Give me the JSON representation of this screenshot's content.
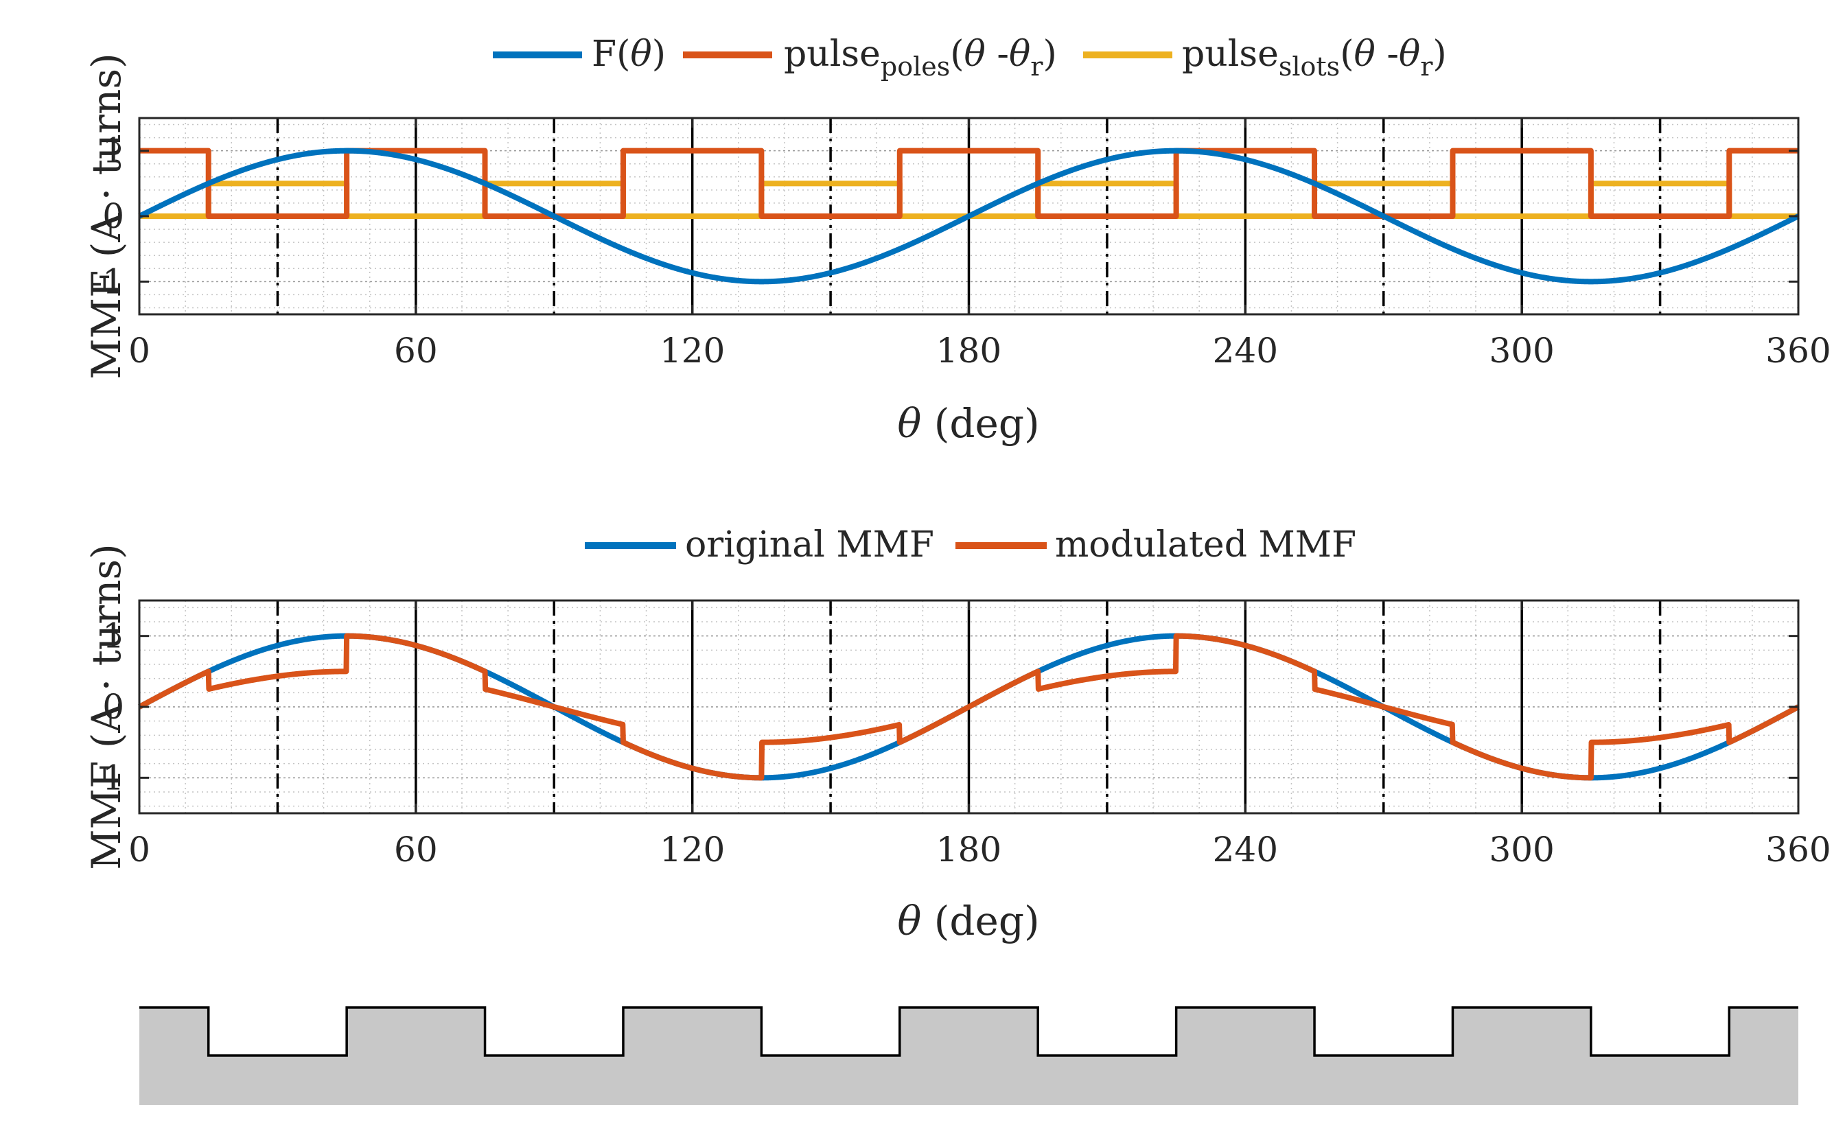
{
  "chart_data": [
    {
      "type": "line",
      "legend": {
        "placement": "top-outside",
        "entries": [
          {
            "main": "F(",
            "theta": "θ",
            "close": ")"
          },
          {
            "main": "pulse",
            "sub": "poles",
            "open": "(",
            "theta": "θ",
            "mid": " -",
            "theta2": "θ",
            "rsub": "r",
            "close": ")"
          },
          {
            "main": "pulse",
            "sub": "slots",
            "open": "(",
            "theta": "θ",
            "mid": " -",
            "theta2": "θ",
            "rsub": "r",
            "close": ")"
          }
        ]
      },
      "xlabel": {
        "symbol": "θ",
        "rest": " (deg)"
      },
      "ylabel": "MMF (A · turns)",
      "xlim": [
        0,
        360
      ],
      "ylim": [
        -1.5,
        1.5
      ],
      "xticks": [
        "0",
        "60",
        "120",
        "180",
        "240",
        "300",
        "360"
      ],
      "yticks": [
        "1",
        "0",
        "-1"
      ],
      "grid": "minor-dotted",
      "colors": {
        "series1": "#0072BD",
        "series2": "#D95319",
        "series3": "#EDB120"
      },
      "series": [
        {
          "name": "F(θ)",
          "function": "sin(2θ)",
          "x_range": [
            0,
            360
          ],
          "amplitude": 1
        },
        {
          "name": "pulse_poles(θ - θr)",
          "high": 1,
          "low": 0,
          "high_intervals": [
            [
              0,
              15
            ],
            [
              45,
              75
            ],
            [
              105,
              135
            ],
            [
              165,
              195
            ],
            [
              225,
              255
            ],
            [
              285,
              315
            ],
            [
              345,
              360
            ]
          ]
        },
        {
          "name": "pulse_slots(θ - θr)",
          "high": 0.5,
          "low": 0,
          "high_intervals": [
            [
              15,
              45
            ],
            [
              75,
              105
            ],
            [
              135,
              165
            ],
            [
              195,
              225
            ],
            [
              255,
              285
            ],
            [
              315,
              345
            ]
          ]
        }
      ],
      "vertical_lines": {
        "solid": [
          60,
          120,
          180,
          240,
          300
        ],
        "dashdot": [
          30,
          90,
          150,
          210,
          270,
          330
        ]
      }
    },
    {
      "type": "line",
      "legend": {
        "placement": "top-outside",
        "entries": [
          {
            "main": "original MMF"
          },
          {
            "main": "modulated MMF"
          }
        ]
      },
      "xlabel": {
        "symbol": "θ",
        "rest": " (deg)"
      },
      "ylabel": "MMF (A · turns)",
      "xlim": [
        0,
        360
      ],
      "ylim": [
        -1.5,
        1.5
      ],
      "xticks": [
        "0",
        "60",
        "120",
        "180",
        "240",
        "300",
        "360"
      ],
      "yticks": [
        "1",
        "0",
        "-1"
      ],
      "grid": "minor-dotted",
      "colors": {
        "series1": "#0072BD",
        "series2": "#D95319"
      },
      "series": [
        {
          "name": "original MMF",
          "function": "sin(2θ)",
          "x_range": [
            0,
            360
          ]
        },
        {
          "name": "modulated MMF",
          "function": "sin(2θ)·g(θ)",
          "gain_on_slot": 0.5,
          "gain_on_pole": 1,
          "slot_intervals": [
            [
              15,
              45
            ],
            [
              75,
              105
            ],
            [
              135,
              165
            ],
            [
              195,
              225
            ],
            [
              255,
              285
            ],
            [
              315,
              345
            ]
          ]
        }
      ],
      "vertical_lines": {
        "solid": [
          60,
          120,
          180,
          240,
          300
        ],
        "dashdot": [
          30,
          90,
          150,
          210,
          270,
          330
        ]
      }
    }
  ],
  "slot_diagram": {
    "slot_intervals": [
      [
        15,
        45
      ],
      [
        75,
        105
      ],
      [
        135,
        165
      ],
      [
        195,
        225
      ],
      [
        255,
        285
      ],
      [
        315,
        345
      ]
    ],
    "fill_color": "#c8c8c8",
    "slot_fill": "#ffffff",
    "stroke": "#000000"
  }
}
